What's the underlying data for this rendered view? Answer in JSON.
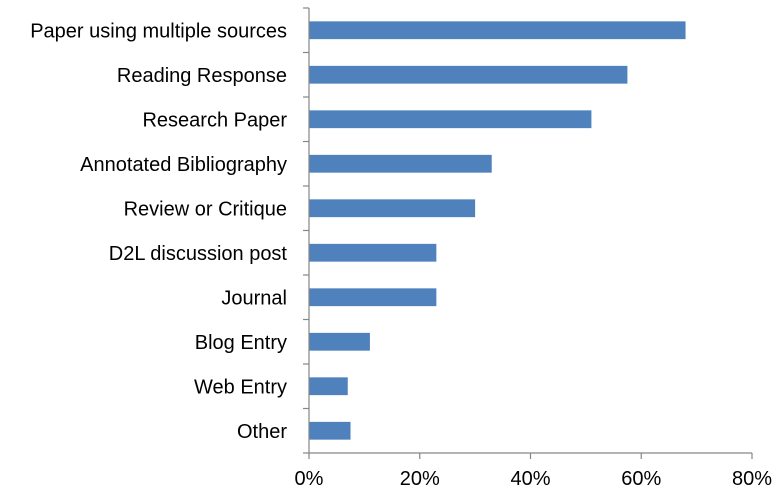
{
  "chart_data": {
    "type": "bar",
    "orientation": "horizontal",
    "title": "",
    "xlabel": "",
    "ylabel": "",
    "categories": [
      "Paper using multiple sources",
      "Reading Response",
      "Research Paper",
      "Annotated Bibliography",
      "Review or Critique",
      "D2L discussion post",
      "Journal",
      "Blog Entry",
      "Web Entry",
      "Other"
    ],
    "values": [
      68,
      57.5,
      51,
      33,
      30,
      23,
      23,
      11,
      7,
      7.5
    ],
    "value_unit": "%",
    "xlim": [
      0,
      80
    ],
    "x_ticks": [
      0,
      20,
      40,
      60,
      80
    ],
    "x_tick_labels": [
      "0%",
      "20%",
      "40%",
      "60%",
      "80%"
    ],
    "bar_color": "#4f81bd",
    "axis_color": "#868686",
    "grid": false,
    "legend": "none"
  }
}
